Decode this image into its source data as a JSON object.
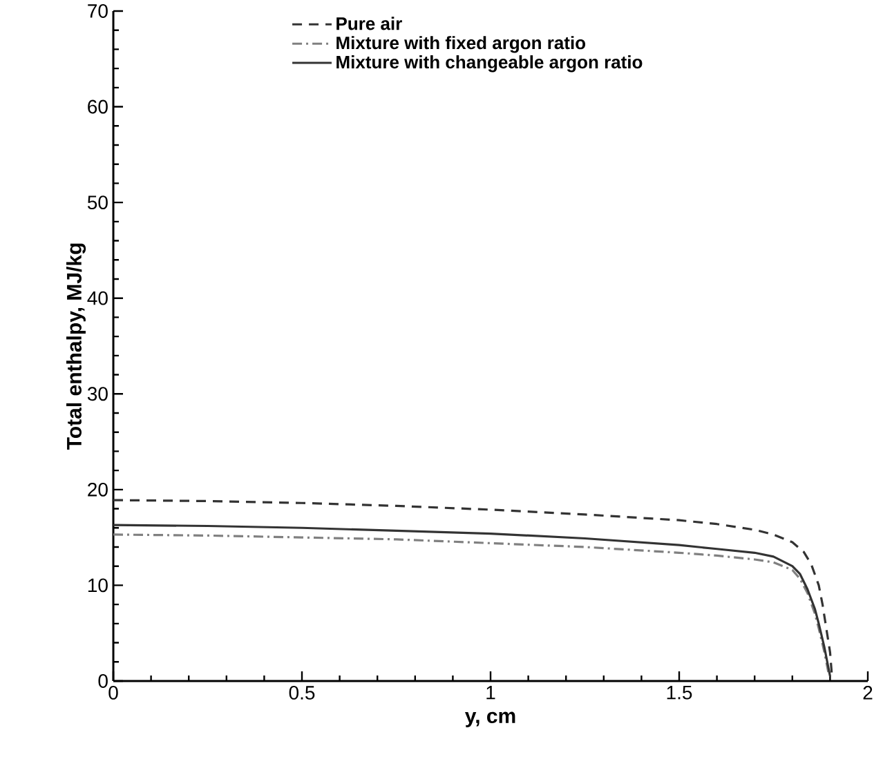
{
  "chart_data": {
    "type": "line",
    "xlabel": "y, cm",
    "ylabel": "Total enthalpy, MJ/kg",
    "xlim": [
      0,
      2
    ],
    "ylim": [
      0,
      70
    ],
    "xticks": [
      0,
      {
        "value": 0.1,
        "label": null
      },
      {
        "value": 0.2,
        "label": null
      },
      {
        "value": 0.3,
        "label": null
      },
      {
        "value": 0.4,
        "label": null
      },
      0.5,
      {
        "value": 0.6,
        "label": null
      },
      {
        "value": 0.7,
        "label": null
      },
      {
        "value": 0.8,
        "label": null
      },
      {
        "value": 0.9,
        "label": null
      },
      1,
      {
        "value": 1.1,
        "label": null
      },
      {
        "value": 1.2,
        "label": null
      },
      {
        "value": 1.3,
        "label": null
      },
      {
        "value": 1.4,
        "label": null
      },
      1.5,
      {
        "value": 1.6,
        "label": null
      },
      {
        "value": 1.7,
        "label": null
      },
      {
        "value": 1.8,
        "label": null
      },
      {
        "value": 1.9,
        "label": null
      },
      2
    ],
    "yticks": [
      0,
      {
        "value": 2,
        "label": null
      },
      {
        "value": 4,
        "label": null
      },
      {
        "value": 6,
        "label": null
      },
      {
        "value": 8,
        "label": null
      },
      10,
      {
        "value": 12,
        "label": null
      },
      {
        "value": 14,
        "label": null
      },
      {
        "value": 16,
        "label": null
      },
      {
        "value": 18,
        "label": null
      },
      20,
      {
        "value": 22,
        "label": null
      },
      {
        "value": 24,
        "label": null
      },
      {
        "value": 26,
        "label": null
      },
      {
        "value": 28,
        "label": null
      },
      30,
      {
        "value": 32,
        "label": null
      },
      {
        "value": 34,
        "label": null
      },
      {
        "value": 36,
        "label": null
      },
      {
        "value": 38,
        "label": null
      },
      40,
      {
        "value": 42,
        "label": null
      },
      {
        "value": 44,
        "label": null
      },
      {
        "value": 46,
        "label": null
      },
      {
        "value": 48,
        "label": null
      },
      50,
      {
        "value": 52,
        "label": null
      },
      {
        "value": 54,
        "label": null
      },
      {
        "value": 56,
        "label": null
      },
      {
        "value": 58,
        "label": null
      },
      60,
      {
        "value": 62,
        "label": null
      },
      {
        "value": 64,
        "label": null
      },
      {
        "value": 66,
        "label": null
      },
      {
        "value": 68,
        "label": null
      },
      70
    ],
    "grid": false,
    "legend": "top",
    "series": [
      {
        "name": "Pure air",
        "color": "#333333",
        "line_style": "dashed",
        "x": [
          0,
          0.25,
          0.5,
          0.75,
          1,
          1.25,
          1.5,
          1.6,
          1.7,
          1.75,
          1.8,
          1.83,
          1.85,
          1.87,
          1.88,
          1.89,
          1.9,
          1.905
        ],
        "values": [
          18.9,
          18.8,
          18.6,
          18.3,
          17.9,
          17.4,
          16.8,
          16.4,
          15.8,
          15.3,
          14.5,
          13.5,
          12.2,
          10,
          8,
          5.5,
          3,
          0.5
        ]
      },
      {
        "name": "Mixture with fixed argon ratio",
        "color": "#808080",
        "line_style": "dashdot",
        "x": [
          0,
          0.25,
          0.5,
          0.75,
          1,
          1.25,
          1.5,
          1.6,
          1.7,
          1.75,
          1.8,
          1.82,
          1.84,
          1.86,
          1.87,
          1.885,
          1.895,
          1.9
        ],
        "values": [
          15.3,
          15.2,
          15.0,
          14.8,
          14.4,
          14.0,
          13.4,
          13.1,
          12.7,
          12.4,
          11.6,
          10.7,
          9.2,
          7,
          5.5,
          3,
          1,
          0.5
        ]
      },
      {
        "name": "Mixture with changeable argon ratio",
        "color": "#333333",
        "line_style": "solid",
        "x": [
          0,
          0.25,
          0.5,
          0.75,
          1,
          1.25,
          1.5,
          1.6,
          1.7,
          1.75,
          1.8,
          1.82,
          1.84,
          1.86,
          1.87,
          1.885,
          1.895,
          1.9
        ],
        "values": [
          16.3,
          16.2,
          16.0,
          15.7,
          15.4,
          14.9,
          14.2,
          13.8,
          13.4,
          13.0,
          12.0,
          11.2,
          9.6,
          7.5,
          6,
          3.5,
          1.5,
          0.5
        ]
      }
    ]
  }
}
